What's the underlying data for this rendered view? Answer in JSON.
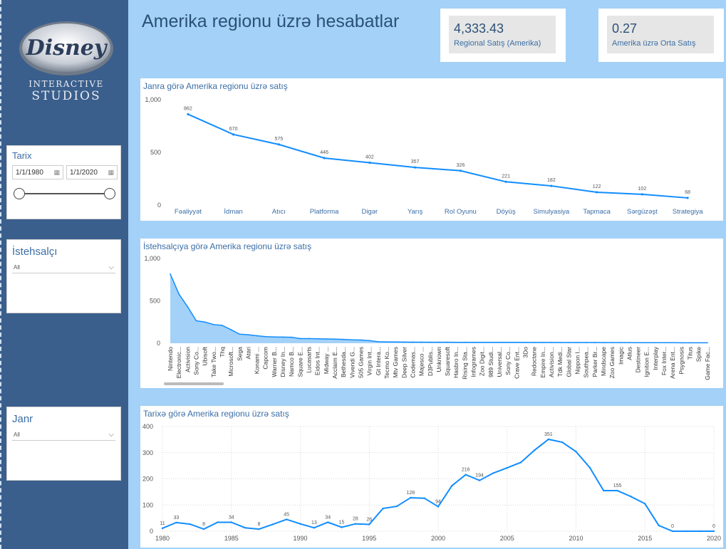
{
  "sidebar": {
    "logo": {
      "brand": "Disney",
      "line1": "INTERACTIVE",
      "line2": "STUDIOS"
    },
    "date_slicer": {
      "title": "Tarix",
      "start": "1/1/1980",
      "end": "1/1/2020"
    },
    "publisher_slicer": {
      "title": "İstehsalçı",
      "value": "All"
    },
    "genre_slicer": {
      "title": "Janr",
      "value": "All"
    }
  },
  "header": {
    "title": "Amerika regionu üzrə hesabatlar"
  },
  "kpis": [
    {
      "value": "4,333.43",
      "label": "Regional Satış (Amerika)"
    },
    {
      "value": "0.27",
      "label": "Amerika üzrə Orta Satış"
    }
  ],
  "colors": {
    "line": "#118dff",
    "area": "#a3d1f7",
    "sidebar": "#3b5f8c",
    "title": "#2c5077"
  },
  "chart_data": [
    {
      "type": "line",
      "title": "Janra görə Amerika regionu üzrə satış",
      "categories": [
        "Fəaliyyət",
        "İdman",
        "Atıcı",
        "Platforma",
        "Digər",
        "Yarış",
        "Rol Oyunu",
        "Döyüş",
        "Simulyasiya",
        "Tapmaca",
        "Sərgüzəşt",
        "Strategiya"
      ],
      "values": [
        862,
        670,
        575,
        446,
        402,
        357,
        326,
        221,
        182,
        122,
        102,
        68
      ],
      "y_ticks": [
        "0",
        "500",
        "1,000"
      ],
      "ylim": [
        0,
        1000
      ]
    },
    {
      "type": "area",
      "title": "İstehsalçıya görə Amerika regionu üzrə satış",
      "categories": [
        "Nintendo",
        "Electronic...",
        "Activision",
        "Sony Co...",
        "Ubisoft",
        "Take Two...",
        "Thq",
        "Microsoft...",
        "Sega",
        "Atari",
        "Konami ...",
        "Capcom",
        "Warner B...",
        "Disney In...",
        "Namco B...",
        "Square E...",
        "Lucasarts",
        "Eidos Int...",
        "Midway ...",
        "Acclaim E...",
        "Bethesda...",
        "Vivendi G...",
        "505 Games",
        "Virgin Int...",
        "Gt Intera...",
        "Tecmo Ko...",
        "Mtv Games",
        "Deep Silver",
        "Codemas...",
        "Majesco ...",
        "D3Publis...",
        "Unknown",
        "Squaresoft",
        "Hasbro In...",
        "Rising Sta...",
        "Infogrames",
        "Zoo Digit...",
        "989 Studi...",
        "Universal...",
        "Sony Co...",
        "Crave Ent...",
        "3Do",
        "Redoctane",
        "Empire In...",
        "Activision...",
        "Tdk Medi...",
        "Global Star",
        "Nippon I...",
        "Southpea...",
        "Parker Br...",
        "Mindscape",
        "Zoo Games",
        "Imagic",
        "Atlus",
        "Destineer",
        "Ignition E...",
        "Interplay",
        "Fox Inter...",
        "Arena Ent...",
        "Psygnosis",
        "Titus",
        "Spike",
        "Game Fac..."
      ],
      "values": [
        816,
        580,
        430,
        265,
        250,
        220,
        210,
        160,
        107,
        100,
        88,
        78,
        74,
        72,
        70,
        55,
        55,
        52,
        50,
        48,
        45,
        40,
        38,
        30,
        18,
        16,
        15,
        14,
        13,
        13,
        12,
        12,
        12,
        11,
        11,
        11,
        11,
        10,
        10,
        10,
        10,
        9,
        9,
        9,
        9,
        8,
        8,
        8,
        8,
        8,
        7,
        7,
        7,
        7,
        6,
        6,
        6,
        6,
        6,
        5,
        5,
        5,
        5
      ],
      "y_ticks": [
        "0",
        "500",
        "1,000"
      ],
      "ylim": [
        0,
        1000
      ]
    },
    {
      "type": "line",
      "title": "Tarixə görə Amerika regionu üzrə satış",
      "x": [
        1980,
        1981,
        1982,
        1983,
        1984,
        1985,
        1986,
        1987,
        1988,
        1989,
        1990,
        1991,
        1992,
        1993,
        1994,
        1995,
        1996,
        1997,
        1998,
        1999,
        2000,
        2001,
        2002,
        2003,
        2004,
        2005,
        2006,
        2007,
        2008,
        2009,
        2010,
        2011,
        2012,
        2013,
        2014,
        2015,
        2016,
        2017,
        2018,
        2019,
        2020
      ],
      "values": [
        11,
        33,
        27,
        8,
        34,
        34,
        13,
        8,
        26,
        45,
        28,
        13,
        34,
        15,
        28,
        26,
        87,
        95,
        128,
        126,
        94,
        174,
        216,
        194,
        222,
        242,
        263,
        310,
        351,
        340,
        304,
        243,
        155,
        155,
        132,
        105,
        22,
        0,
        0,
        0,
        0
      ],
      "labels": [
        {
          "x": 1980,
          "text": "11"
        },
        {
          "x": 1981,
          "text": "33"
        },
        {
          "x": 1983,
          "text": "8"
        },
        {
          "x": 1985,
          "text": "34"
        },
        {
          "x": 1987,
          "text": "8"
        },
        {
          "x": 1989,
          "text": "45"
        },
        {
          "x": 1991,
          "text": "13"
        },
        {
          "x": 1992,
          "text": "34"
        },
        {
          "x": 1993,
          "text": "15"
        },
        {
          "x": 1994,
          "text": "28"
        },
        {
          "x": 1995,
          "text": "26"
        },
        {
          "x": 1998,
          "text": "128"
        },
        {
          "x": 2000,
          "text": "94"
        },
        {
          "x": 2002,
          "text": "216"
        },
        {
          "x": 2003,
          "text": "194"
        },
        {
          "x": 2008,
          "text": "351"
        },
        {
          "x": 2013,
          "text": "155"
        },
        {
          "x": 2017,
          "text": "0"
        },
        {
          "x": 2020,
          "text": "0"
        }
      ],
      "x_ticks": [
        "1980",
        "1985",
        "1990",
        "1995",
        "2000",
        "2005",
        "2010",
        "2015",
        "2020"
      ],
      "y_ticks": [
        "0",
        "100",
        "200",
        "300",
        "400"
      ],
      "ylim": [
        0,
        400
      ],
      "grid": true
    }
  ]
}
